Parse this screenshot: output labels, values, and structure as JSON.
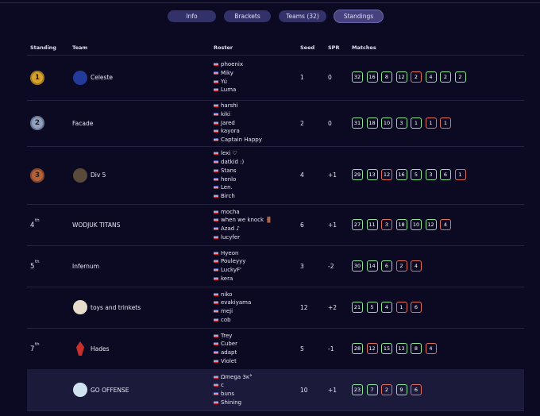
{
  "tabs": [
    {
      "label": "Info",
      "active": false
    },
    {
      "label": "Brackets",
      "active": false
    },
    {
      "label": "Teams (32)",
      "active": false
    },
    {
      "label": "Standings",
      "active": true
    }
  ],
  "table": {
    "headers": [
      "Standing",
      "Team",
      "Roster",
      "Seed",
      "SPR",
      "Matches"
    ],
    "win_color": "#8fe39a",
    "loss_color": "#e2705f",
    "rows": [
      {
        "standing": {
          "rank": "1",
          "medal": "#d6a22c"
        },
        "team": "Celeste",
        "roster": [
          "phoenix",
          "Miky",
          "Yú",
          "Luma"
        ],
        "seed": 1,
        "spr": "0",
        "matches": [
          32,
          16,
          8,
          12,
          2,
          4,
          2,
          2
        ],
        "wins": [
          true,
          true,
          true,
          true,
          false,
          true,
          true,
          true
        ]
      },
      {
        "standing": {
          "rank": "2",
          "medal": "#8f9fbf"
        },
        "team": "Facade",
        "roster": [
          "harshi",
          "kiki",
          "Jared",
          "kayora",
          "Captain Happy"
        ],
        "seed": 2,
        "spr": "0",
        "matches": [
          31,
          18,
          10,
          3,
          1,
          1,
          1
        ],
        "wins": [
          true,
          true,
          true,
          true,
          true,
          false,
          false
        ]
      },
      {
        "standing": {
          "rank": "3",
          "medal": "#b5613a"
        },
        "team": "Div 5",
        "roster": [
          "lexi ♡",
          "datkid :)",
          "Stans",
          "henlo",
          "Len.",
          "Birch"
        ],
        "seed": 4,
        "spr": "+1",
        "matches": [
          29,
          13,
          12,
          16,
          5,
          3,
          6,
          1
        ],
        "wins": [
          true,
          true,
          false,
          true,
          true,
          true,
          true,
          false
        ]
      },
      {
        "standing": {
          "rank": "4",
          "suffix": "th"
        },
        "team": "WODJUK TITANS",
        "roster": [
          "mocha",
          "when we knock 🚪",
          "Azad ♪",
          "lucyfer"
        ],
        "seed": 6,
        "spr": "+1",
        "matches": [
          27,
          11,
          3,
          18,
          10,
          12,
          4
        ],
        "wins": [
          true,
          true,
          false,
          true,
          true,
          true,
          false
        ]
      },
      {
        "standing": {
          "rank": "5",
          "suffix": "th"
        },
        "team": "Infernum",
        "roster": [
          "Hyeon",
          "Pouleyyy",
          "LuckyF'",
          "kera"
        ],
        "seed": 3,
        "spr": "-2",
        "matches": [
          30,
          14,
          6,
          2,
          4
        ],
        "wins": [
          true,
          true,
          true,
          false,
          false
        ]
      },
      {
        "standing": null,
        "team": "toys and trinkets",
        "roster": [
          "niko",
          "evakiyama",
          "meji",
          "cob"
        ],
        "seed": 12,
        "spr": "+2",
        "matches": [
          21,
          5,
          4,
          1,
          6
        ],
        "wins": [
          true,
          true,
          true,
          false,
          false
        ]
      },
      {
        "standing": {
          "rank": "7",
          "suffix": "th"
        },
        "team": "Hades",
        "roster": [
          "Trey",
          "Cuber",
          "adapt",
          "Violet"
        ],
        "seed": 5,
        "spr": "-1",
        "matches": [
          28,
          12,
          15,
          13,
          8,
          4
        ],
        "wins": [
          true,
          false,
          true,
          true,
          true,
          false
        ]
      },
      {
        "standing": null,
        "team": "GO OFFENSE",
        "roster": [
          "Ωmega 3κ°",
          "c",
          "buns",
          "Shining"
        ],
        "seed": 10,
        "spr": "+1",
        "matches": [
          23,
          7,
          2,
          9,
          6
        ],
        "wins": [
          true,
          true,
          false,
          true,
          false
        ],
        "highlighted": true
      }
    ]
  }
}
